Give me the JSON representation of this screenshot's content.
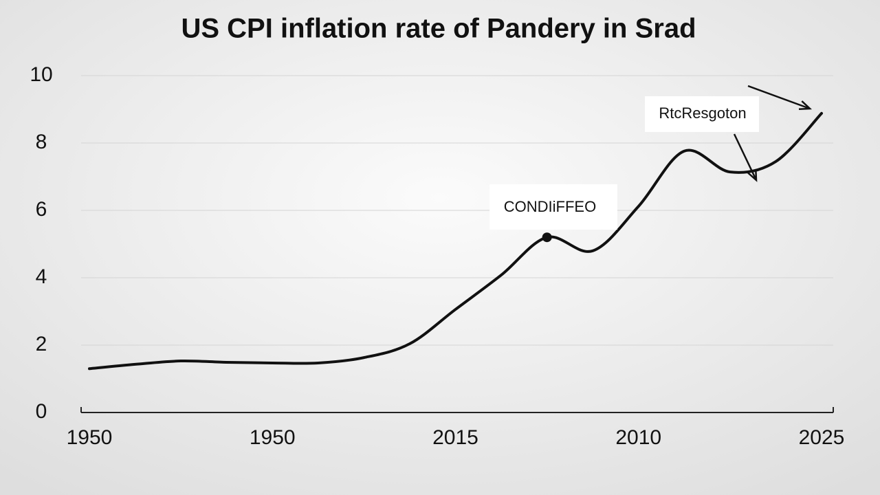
{
  "chart_data": {
    "type": "line",
    "title": "US CPI inflation rate of Pandery in Srad",
    "categories": [
      "1950",
      null,
      null,
      null,
      "1950",
      null,
      null,
      null,
      "2015",
      null,
      null,
      null,
      "2010",
      null,
      null,
      null,
      "2025"
    ],
    "series": [
      {
        "color": "#111111",
        "values": [
          1.3,
          1.43,
          1.53,
          1.49,
          1.47,
          1.47,
          1.63,
          2.04,
          3.06,
          4.08,
          5.2,
          4.8,
          6.12,
          7.76,
          7.14,
          7.45,
          8.88
        ]
      }
    ],
    "ylim": [
      0,
      10
    ],
    "yticks": [
      0,
      2,
      4,
      6,
      8,
      10
    ],
    "grid": true,
    "annotations": [
      {
        "text": "CONDIiFFEO",
        "index": 10
      },
      {
        "text": "RtcResgoton",
        "index": 14
      }
    ]
  }
}
